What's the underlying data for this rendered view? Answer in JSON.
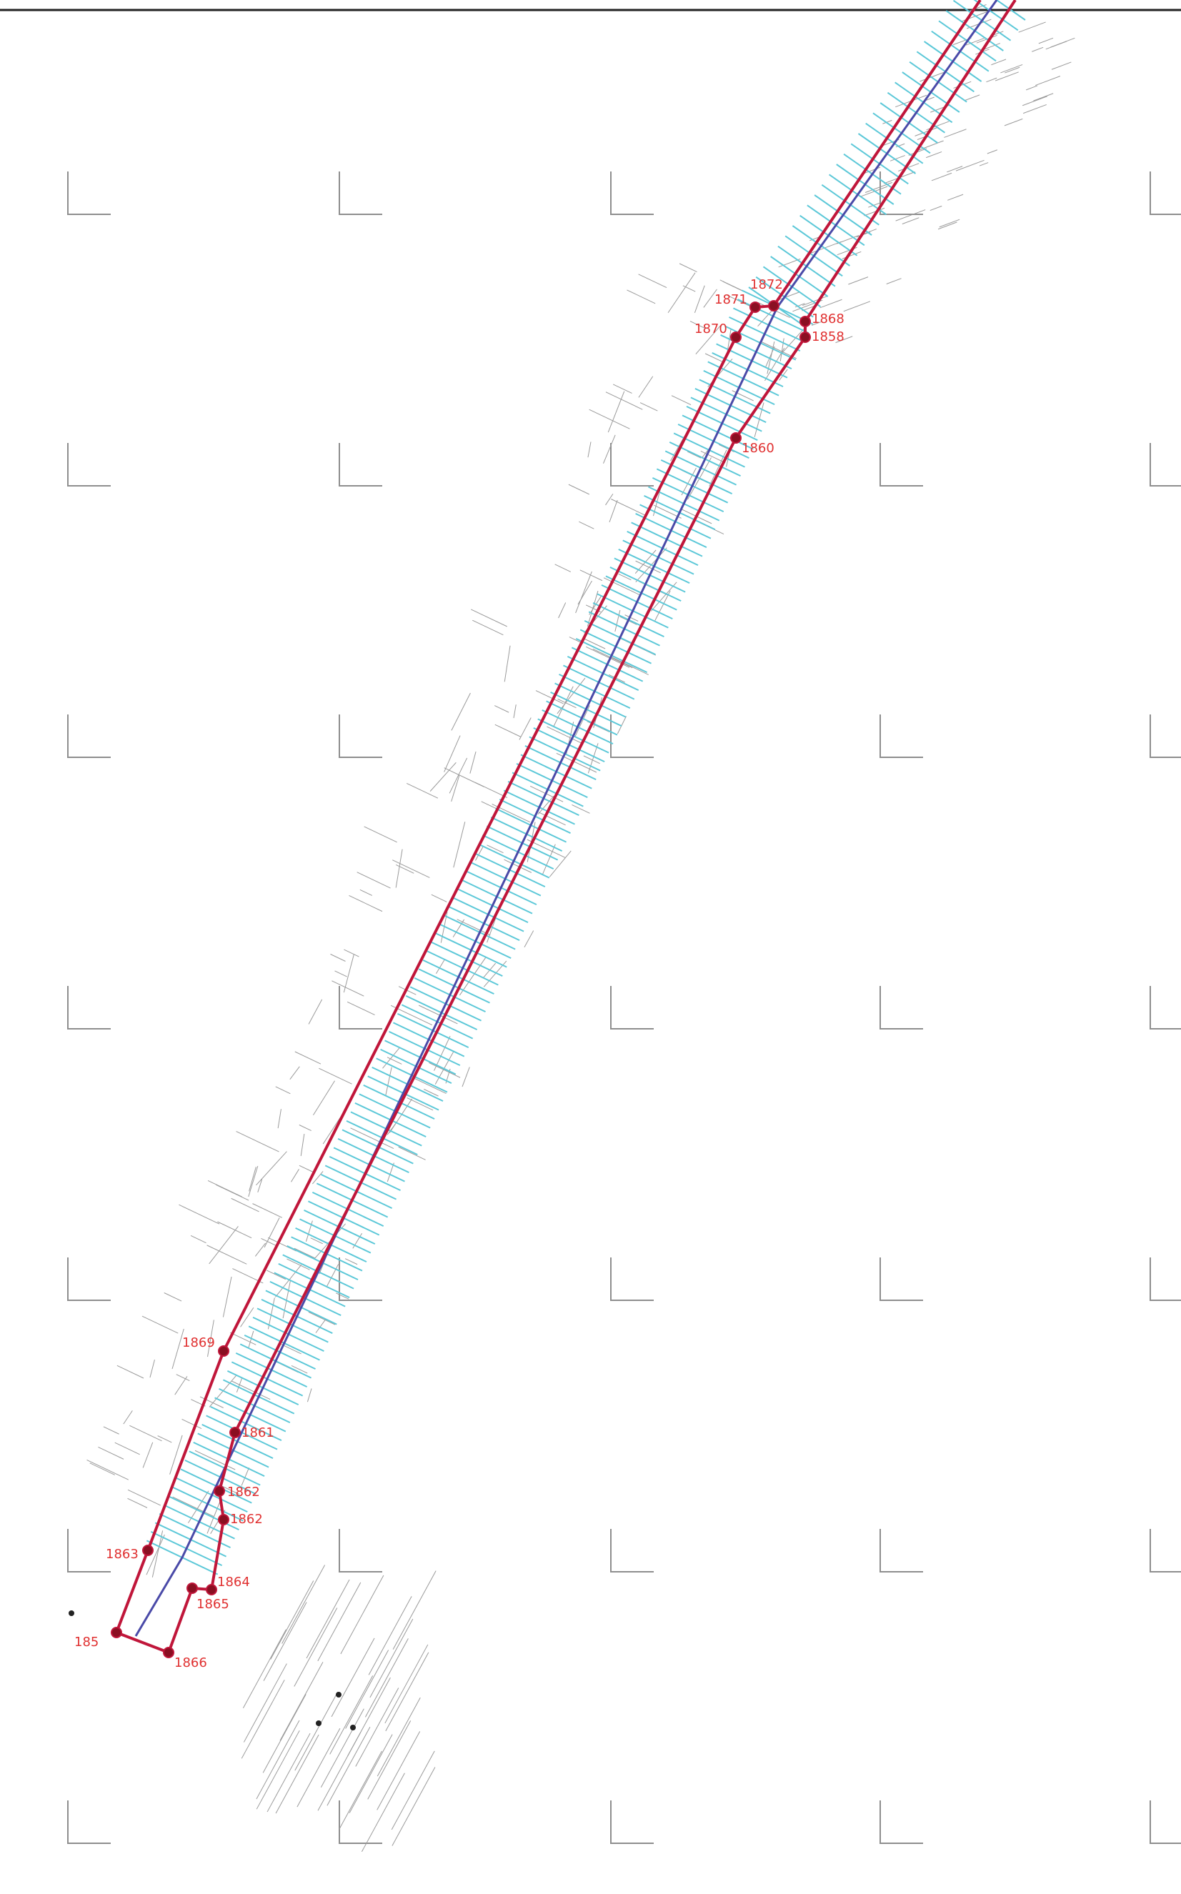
{
  "map": {
    "boundary_color": "#c0163a",
    "centerline_color": "#4a4aa8",
    "tick_color": "#5cc8d8",
    "survey_color": "#9a9a9a",
    "vertex_labels": [
      {
        "id": "v1872",
        "text": "1872"
      },
      {
        "id": "v1871",
        "text": "1871"
      },
      {
        "id": "v1870",
        "text": "1870"
      },
      {
        "id": "v1868",
        "text": "1868"
      },
      {
        "id": "v1858",
        "text": "1858"
      },
      {
        "id": "v1860",
        "text": "1860"
      },
      {
        "id": "v1869",
        "text": "1869"
      },
      {
        "id": "v1861",
        "text": "1861"
      },
      {
        "id": "v1862",
        "text": "1862"
      },
      {
        "id": "v1863",
        "text": "1863"
      },
      {
        "id": "v1862b",
        "text": "1862"
      },
      {
        "id": "v1864",
        "text": "1864"
      },
      {
        "id": "v1865",
        "text": "1865"
      },
      {
        "id": "v1866",
        "text": "1866"
      },
      {
        "id": "v185",
        "text": "185"
      }
    ]
  }
}
